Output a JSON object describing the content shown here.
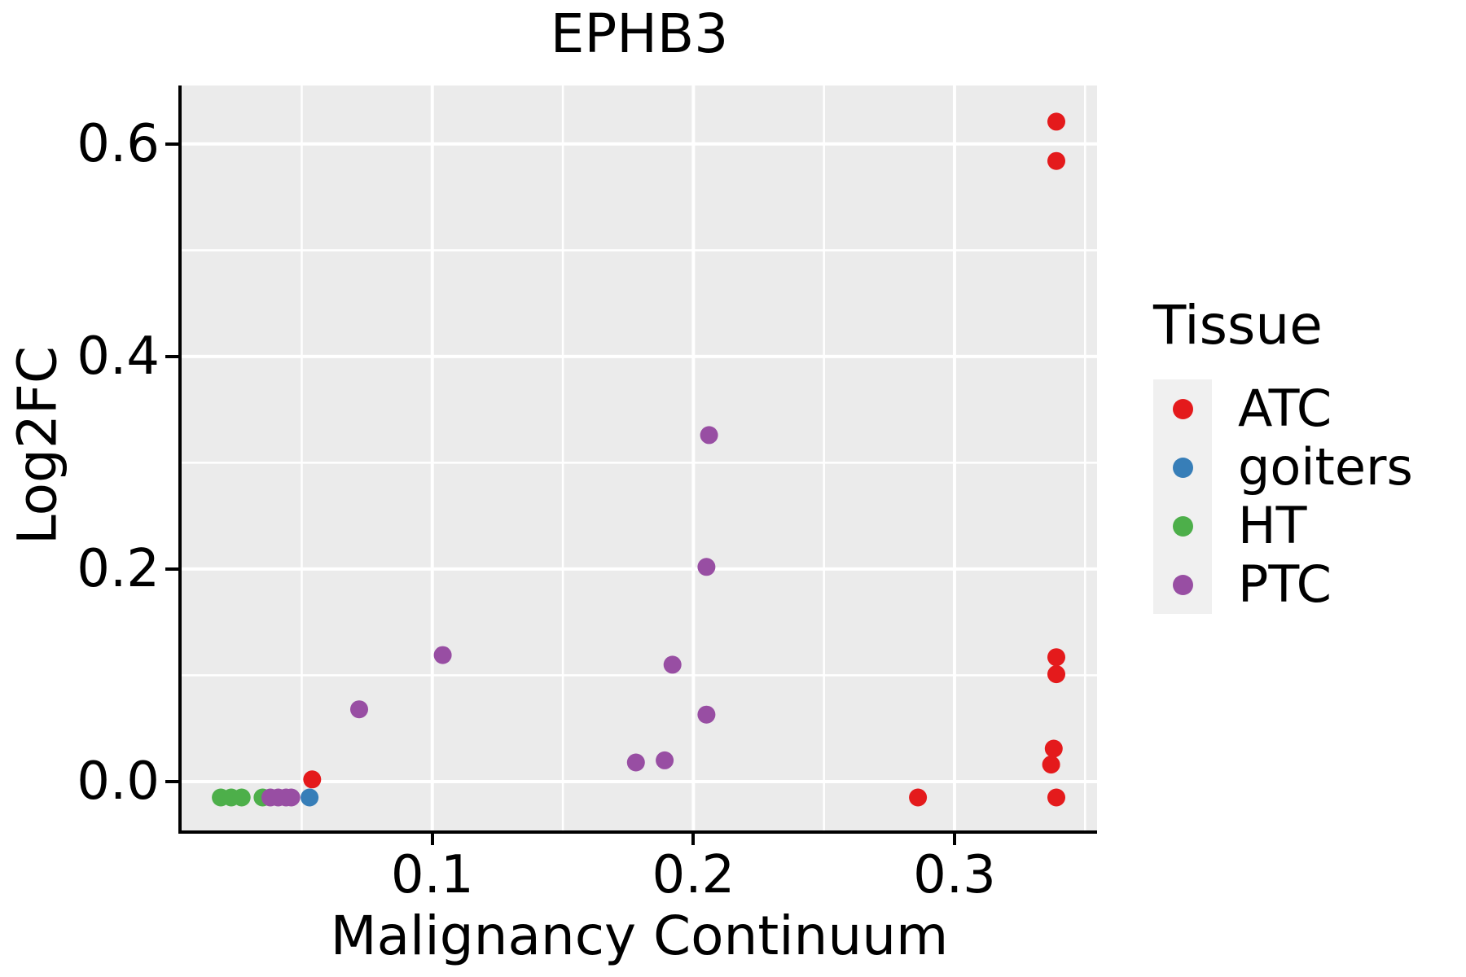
{
  "chart_data": {
    "type": "scatter",
    "title": "EPHB3",
    "xlabel": "Malignancy Continuum",
    "ylabel": "Log2FC",
    "legend_title": "Tissue",
    "legend_position": "right",
    "grid": true,
    "panel_background": "#EBEBEB",
    "gridline_color": "#FFFFFF",
    "axis_color": "#000000",
    "xlim": [
      0.004,
      0.3546
    ],
    "ylim": [
      -0.046,
      0.655
    ],
    "x_ticks": {
      "values": [
        0.1,
        0.2,
        0.3
      ],
      "labels": [
        "0.1",
        "0.2",
        "0.3"
      ]
    },
    "y_ticks": {
      "values": [
        0.0,
        0.2,
        0.4,
        0.6
      ],
      "labels": [
        "0.0",
        "0.2",
        "0.4",
        "0.6"
      ]
    },
    "x_minor_breaks": [
      0.05,
      0.15,
      0.25,
      0.35
    ],
    "y_minor_breaks": [
      0.1,
      0.3,
      0.5
    ],
    "point_radius_px": 11,
    "series": [
      {
        "name": "ATC",
        "color": "#E41A1C",
        "points": [
          [
            0.339,
            0.621
          ],
          [
            0.339,
            0.584
          ],
          [
            0.339,
            0.117
          ],
          [
            0.339,
            0.101
          ],
          [
            0.338,
            0.031
          ],
          [
            0.337,
            0.016
          ],
          [
            0.339,
            -0.015
          ],
          [
            0.286,
            -0.015
          ],
          [
            0.054,
            0.002
          ]
        ]
      },
      {
        "name": "goiters",
        "color": "#377EB8",
        "points": [
          [
            0.053,
            -0.015
          ]
        ]
      },
      {
        "name": "HT",
        "color": "#4DAF4A",
        "points": [
          [
            0.019,
            -0.015
          ],
          [
            0.023,
            -0.015
          ],
          [
            0.027,
            -0.015
          ],
          [
            0.035,
            -0.015
          ]
        ]
      },
      {
        "name": "PTC",
        "color": "#984EA3",
        "points": [
          [
            0.038,
            -0.015
          ],
          [
            0.041,
            -0.015
          ],
          [
            0.044,
            -0.015
          ],
          [
            0.046,
            -0.015
          ],
          [
            0.072,
            0.068
          ],
          [
            0.104,
            0.119
          ],
          [
            0.178,
            0.018
          ],
          [
            0.189,
            0.02
          ],
          [
            0.192,
            0.11
          ],
          [
            0.205,
            0.063
          ],
          [
            0.205,
            0.202
          ],
          [
            0.206,
            0.326
          ]
        ]
      }
    ]
  }
}
